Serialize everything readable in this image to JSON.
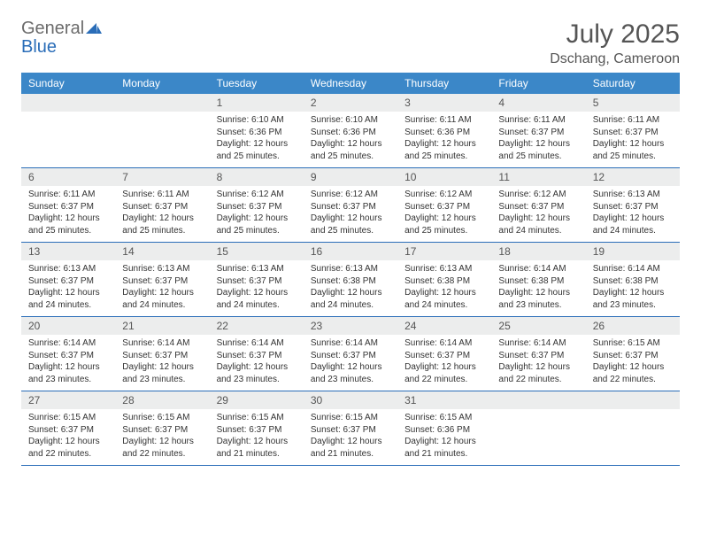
{
  "logo": {
    "general": "General",
    "blue": "Blue"
  },
  "title": "July 2025",
  "location": "Dschang, Cameroon",
  "colors": {
    "header_bg": "#3b87c8",
    "header_text": "#ffffff",
    "daynum_bg": "#eceded",
    "border": "#2a6db8",
    "logo_gray": "#6b6b6b",
    "logo_blue": "#2a6db8",
    "title_color": "#555555"
  },
  "weekdays": [
    "Sunday",
    "Monday",
    "Tuesday",
    "Wednesday",
    "Thursday",
    "Friday",
    "Saturday"
  ],
  "weeks": [
    [
      null,
      null,
      {
        "n": "1",
        "sr": "6:10 AM",
        "ss": "6:36 PM",
        "dl": "12 hours and 25 minutes."
      },
      {
        "n": "2",
        "sr": "6:10 AM",
        "ss": "6:36 PM",
        "dl": "12 hours and 25 minutes."
      },
      {
        "n": "3",
        "sr": "6:11 AM",
        "ss": "6:36 PM",
        "dl": "12 hours and 25 minutes."
      },
      {
        "n": "4",
        "sr": "6:11 AM",
        "ss": "6:37 PM",
        "dl": "12 hours and 25 minutes."
      },
      {
        "n": "5",
        "sr": "6:11 AM",
        "ss": "6:37 PM",
        "dl": "12 hours and 25 minutes."
      }
    ],
    [
      {
        "n": "6",
        "sr": "6:11 AM",
        "ss": "6:37 PM",
        "dl": "12 hours and 25 minutes."
      },
      {
        "n": "7",
        "sr": "6:11 AM",
        "ss": "6:37 PM",
        "dl": "12 hours and 25 minutes."
      },
      {
        "n": "8",
        "sr": "6:12 AM",
        "ss": "6:37 PM",
        "dl": "12 hours and 25 minutes."
      },
      {
        "n": "9",
        "sr": "6:12 AM",
        "ss": "6:37 PM",
        "dl": "12 hours and 25 minutes."
      },
      {
        "n": "10",
        "sr": "6:12 AM",
        "ss": "6:37 PM",
        "dl": "12 hours and 25 minutes."
      },
      {
        "n": "11",
        "sr": "6:12 AM",
        "ss": "6:37 PM",
        "dl": "12 hours and 24 minutes."
      },
      {
        "n": "12",
        "sr": "6:13 AM",
        "ss": "6:37 PM",
        "dl": "12 hours and 24 minutes."
      }
    ],
    [
      {
        "n": "13",
        "sr": "6:13 AM",
        "ss": "6:37 PM",
        "dl": "12 hours and 24 minutes."
      },
      {
        "n": "14",
        "sr": "6:13 AM",
        "ss": "6:37 PM",
        "dl": "12 hours and 24 minutes."
      },
      {
        "n": "15",
        "sr": "6:13 AM",
        "ss": "6:37 PM",
        "dl": "12 hours and 24 minutes."
      },
      {
        "n": "16",
        "sr": "6:13 AM",
        "ss": "6:38 PM",
        "dl": "12 hours and 24 minutes."
      },
      {
        "n": "17",
        "sr": "6:13 AM",
        "ss": "6:38 PM",
        "dl": "12 hours and 24 minutes."
      },
      {
        "n": "18",
        "sr": "6:14 AM",
        "ss": "6:38 PM",
        "dl": "12 hours and 23 minutes."
      },
      {
        "n": "19",
        "sr": "6:14 AM",
        "ss": "6:38 PM",
        "dl": "12 hours and 23 minutes."
      }
    ],
    [
      {
        "n": "20",
        "sr": "6:14 AM",
        "ss": "6:37 PM",
        "dl": "12 hours and 23 minutes."
      },
      {
        "n": "21",
        "sr": "6:14 AM",
        "ss": "6:37 PM",
        "dl": "12 hours and 23 minutes."
      },
      {
        "n": "22",
        "sr": "6:14 AM",
        "ss": "6:37 PM",
        "dl": "12 hours and 23 minutes."
      },
      {
        "n": "23",
        "sr": "6:14 AM",
        "ss": "6:37 PM",
        "dl": "12 hours and 23 minutes."
      },
      {
        "n": "24",
        "sr": "6:14 AM",
        "ss": "6:37 PM",
        "dl": "12 hours and 22 minutes."
      },
      {
        "n": "25",
        "sr": "6:14 AM",
        "ss": "6:37 PM",
        "dl": "12 hours and 22 minutes."
      },
      {
        "n": "26",
        "sr": "6:15 AM",
        "ss": "6:37 PM",
        "dl": "12 hours and 22 minutes."
      }
    ],
    [
      {
        "n": "27",
        "sr": "6:15 AM",
        "ss": "6:37 PM",
        "dl": "12 hours and 22 minutes."
      },
      {
        "n": "28",
        "sr": "6:15 AM",
        "ss": "6:37 PM",
        "dl": "12 hours and 22 minutes."
      },
      {
        "n": "29",
        "sr": "6:15 AM",
        "ss": "6:37 PM",
        "dl": "12 hours and 21 minutes."
      },
      {
        "n": "30",
        "sr": "6:15 AM",
        "ss": "6:37 PM",
        "dl": "12 hours and 21 minutes."
      },
      {
        "n": "31",
        "sr": "6:15 AM",
        "ss": "6:36 PM",
        "dl": "12 hours and 21 minutes."
      },
      null,
      null
    ]
  ],
  "labels": {
    "sunrise": "Sunrise:",
    "sunset": "Sunset:",
    "daylight": "Daylight:"
  }
}
